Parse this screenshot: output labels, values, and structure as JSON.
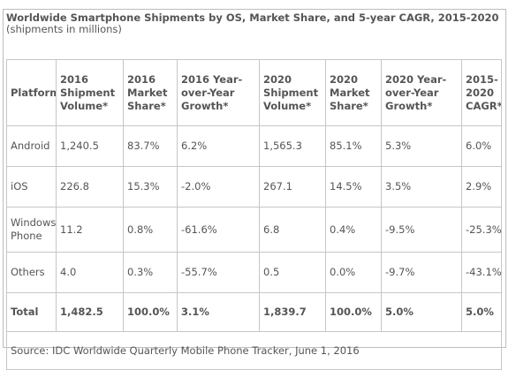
{
  "title": {
    "main": "Worldwide Smartphone Shipments by OS, Market Share, and 5-year CAGR, 2015-2020",
    "note": "(shipments in millions)"
  },
  "table": {
    "headers": [
      "Platform",
      "2016 Shipment Volume*",
      "2016 Market Share*",
      "2016 Year-over-Year Growth*",
      "2020 Shipment Volume*",
      "2020 Market Share*",
      "2020 Year-over-Year Growth*",
      "2015-2020 CAGR*"
    ],
    "rows": [
      [
        "Android",
        "1,240.5",
        "83.7%",
        "6.2%",
        "1,565.3",
        "85.1%",
        "5.3%",
        "6.0%"
      ],
      [
        "iOS",
        "226.8",
        "15.3%",
        "-2.0%",
        "267.1",
        "14.5%",
        "3.5%",
        "2.9%"
      ],
      [
        "Windows Phone",
        "11.2",
        "0.8%",
        "-61.6%",
        "6.8",
        "0.4%",
        "-9.5%",
        "-25.3%"
      ],
      [
        "Others",
        "4.0",
        "0.3%",
        "-55.7%",
        "0.5",
        "0.0%",
        "-9.7%",
        "-43.1%"
      ]
    ],
    "total": [
      "Total",
      "1,482.5",
      "100.0%",
      "3.1%",
      "1,839.7",
      "100.0%",
      "5.0%",
      "5.0%"
    ],
    "source": "Source: IDC Worldwide Quarterly Mobile Phone Tracker, June 1, 2016"
  }
}
